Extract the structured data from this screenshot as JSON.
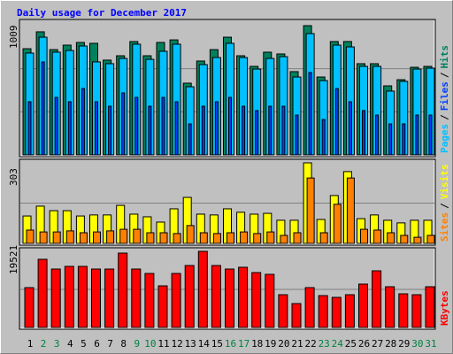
{
  "title": "Daily usage for December 2017",
  "legend_separator": "/",
  "categories": [
    "1",
    "2",
    "3",
    "4",
    "5",
    "6",
    "7",
    "8",
    "9",
    "10",
    "11",
    "12",
    "13",
    "14",
    "15",
    "16",
    "17",
    "18",
    "19",
    "20",
    "21",
    "22",
    "23",
    "24",
    "25",
    "26",
    "27",
    "28",
    "29",
    "30",
    "31"
  ],
  "category_colors": [
    "#000000",
    "#008040",
    "#008040",
    "#000000",
    "#000000",
    "#000000",
    "#000000",
    "#000000",
    "#008040",
    "#008040",
    "#000000",
    "#000000",
    "#000000",
    "#000000",
    "#000000",
    "#008040",
    "#008040",
    "#000000",
    "#000000",
    "#000000",
    "#000000",
    "#000000",
    "#008040",
    "#008040",
    "#000000",
    "#000000",
    "#000000",
    "#000000",
    "#000000",
    "#008040",
    "#008040"
  ],
  "chart_data": [
    {
      "type": "bar",
      "ylim": [
        0,
        1009
      ],
      "yticks": [
        1009
      ],
      "series": [
        {
          "name": "Hits",
          "color": "#00805c",
          "values": [
            829,
            961,
            822,
            857,
            878,
            871,
            740,
            774,
            885,
            774,
            878,
            898,
            560,
            733,
            822,
            919,
            774,
            691,
            802,
            788,
            650,
            1009,
            608,
            885,
            885,
            712,
            712,
            539,
            587,
            684,
            691
          ]
        },
        {
          "name": "Files",
          "color": "#0040ff",
          "values": [
            415,
            726,
            449,
            415,
            518,
            415,
            380,
            484,
            449,
            380,
            449,
            415,
            242,
            380,
            415,
            449,
            380,
            346,
            380,
            380,
            311,
            643,
            276,
            518,
            415,
            346,
            311,
            242,
            242,
            311,
            311
          ]
        },
        {
          "name": "Pages",
          "color": "#00c0ff",
          "values": [
            795,
            919,
            802,
            815,
            850,
            726,
            712,
            753,
            864,
            746,
            809,
            864,
            532,
            705,
            760,
            871,
            760,
            670,
            753,
            767,
            608,
            947,
            580,
            857,
            843,
            691,
            691,
            498,
            574,
            670,
            677
          ]
        }
      ]
    },
    {
      "type": "bar",
      "ylim": [
        0,
        303
      ],
      "yticks": [
        303
      ],
      "series": [
        {
          "name": "Visits",
          "color": "#ffff00",
          "values": [
            103,
            140,
            123,
            123,
            103,
            107,
            107,
            143,
            110,
            100,
            80,
            130,
            173,
            110,
            107,
            130,
            117,
            110,
            113,
            87,
            87,
            303,
            90,
            180,
            270,
            93,
            107,
            87,
            77,
            87,
            87
          ]
        },
        {
          "name": "Sites",
          "color": "#ff8000",
          "values": [
            50,
            43,
            43,
            47,
            40,
            43,
            47,
            53,
            53,
            40,
            40,
            37,
            67,
            40,
            37,
            40,
            43,
            37,
            43,
            30,
            40,
            246,
            40,
            147,
            246,
            53,
            50,
            40,
            30,
            23,
            30
          ]
        }
      ]
    },
    {
      "type": "bar",
      "ylim": [
        0,
        19521
      ],
      "yticks": [
        19521
      ],
      "series": [
        {
          "name": "KBytes",
          "color": "#ff0000",
          "values": [
            10215,
            17479,
            14982,
            15663,
            15663,
            14982,
            14982,
            19068,
            14982,
            13847,
            10669,
            13847,
            15890,
            19521,
            15890,
            14982,
            15436,
            14074,
            13620,
            8399,
            6129,
            10215,
            8172,
            7718,
            8399,
            11123,
            14528,
            10442,
            8626,
            8399,
            10442
          ]
        }
      ]
    }
  ]
}
